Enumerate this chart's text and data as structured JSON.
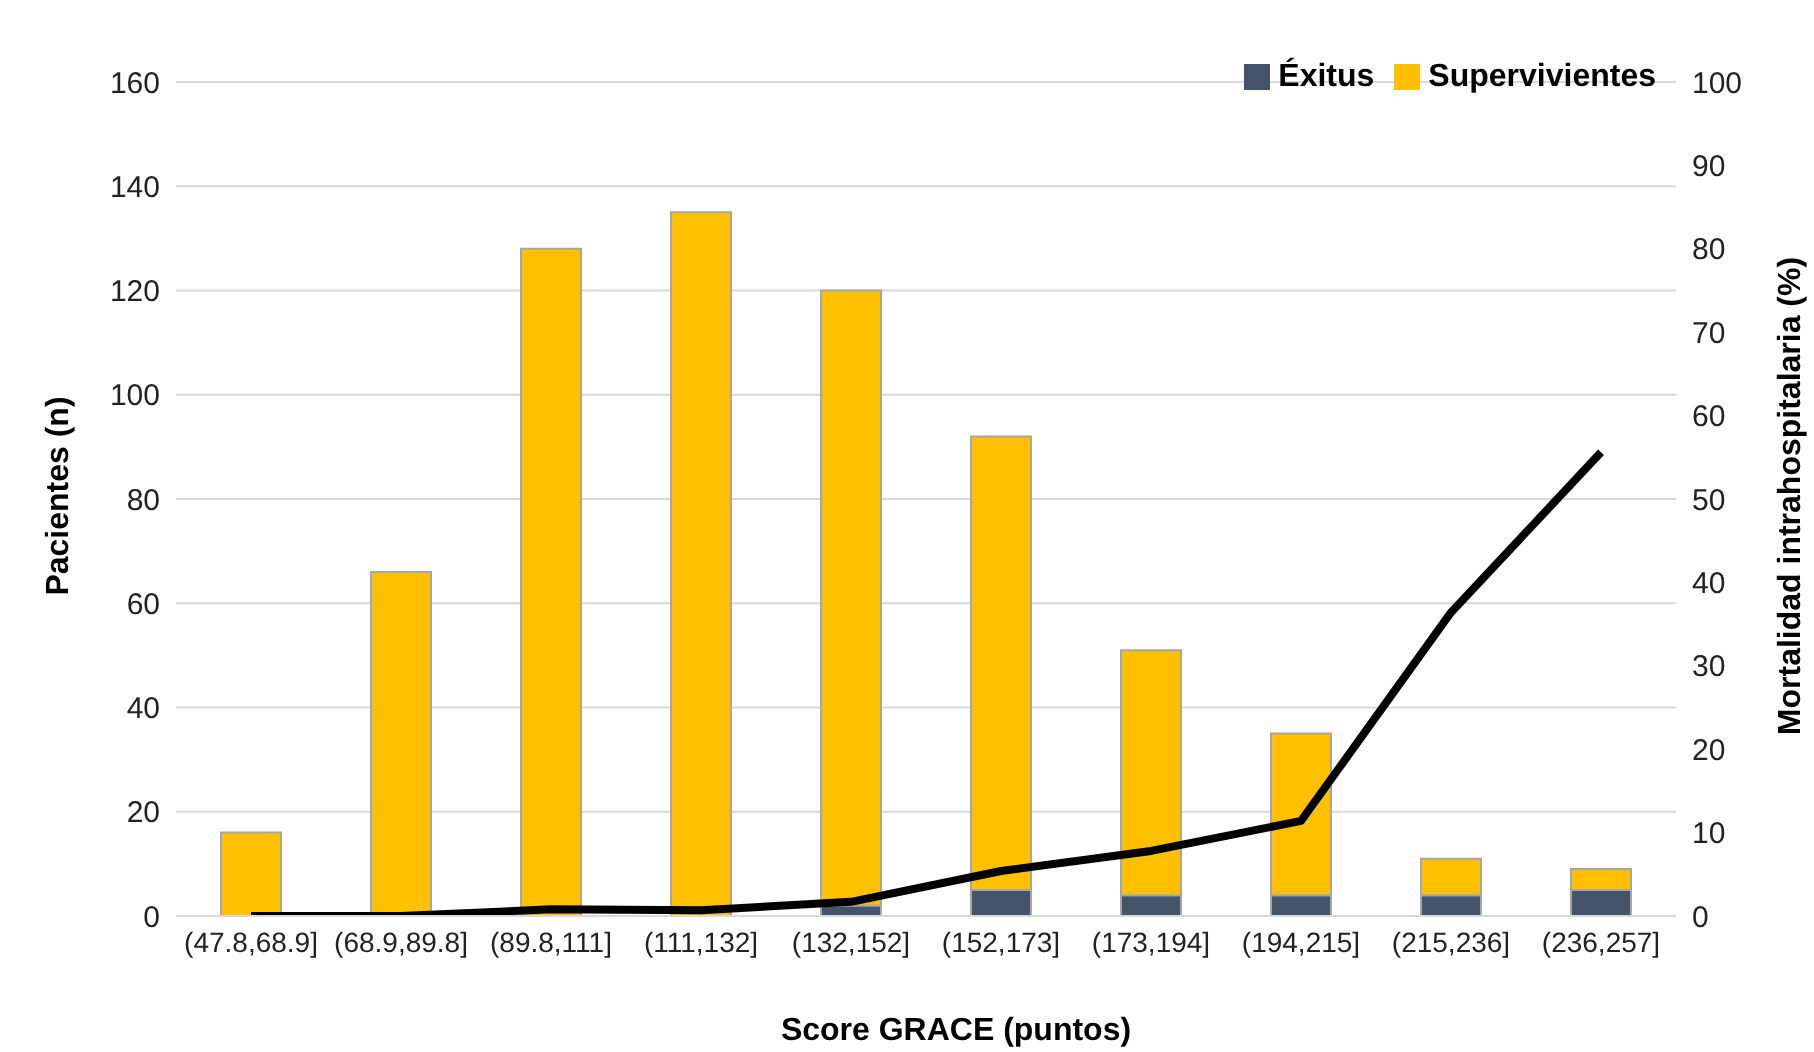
{
  "chart_data": {
    "type": "bar",
    "stacked": true,
    "xlabel": "Score GRACE (puntos)",
    "ylabel": "Pacientes (n)",
    "y2label": "Mortalidad intrahospitalaria (%)",
    "categories": [
      "(47.8,68.9]",
      "(68.9,89.8]",
      "(89.8,111]",
      "(111,132]",
      "(132,152]",
      "(152,173]",
      "(173,194]",
      "(194,215]",
      "(215,236]",
      "(236,257]"
    ],
    "series": [
      {
        "name": "Éxitus",
        "color": "#44546a",
        "values": [
          0,
          0,
          null,
          null,
          2,
          5,
          4,
          4,
          4,
          5
        ]
      },
      {
        "name": "Supervivientes",
        "color": "#ffc000",
        "values": [
          16,
          66,
          128,
          135,
          118,
          87,
          47,
          31,
          7,
          4
        ]
      },
      {
        "type": "line",
        "axis": "y2",
        "color": "#000000",
        "values": [
          0,
          0,
          0.8,
          0.7,
          1.7,
          5.4,
          7.8,
          11.4,
          36.4,
          55.6
        ]
      }
    ],
    "ylim": [
      0,
      160
    ],
    "yticks": [
      0,
      20,
      40,
      60,
      80,
      100,
      120,
      140,
      160
    ],
    "y2lim": [
      0,
      100
    ],
    "y2ticks": [
      0,
      10,
      20,
      30,
      40,
      50,
      60,
      70,
      80,
      90,
      100
    ],
    "grid": "y",
    "legend": "top right",
    "marker": "none",
    "line_style": "solid"
  }
}
